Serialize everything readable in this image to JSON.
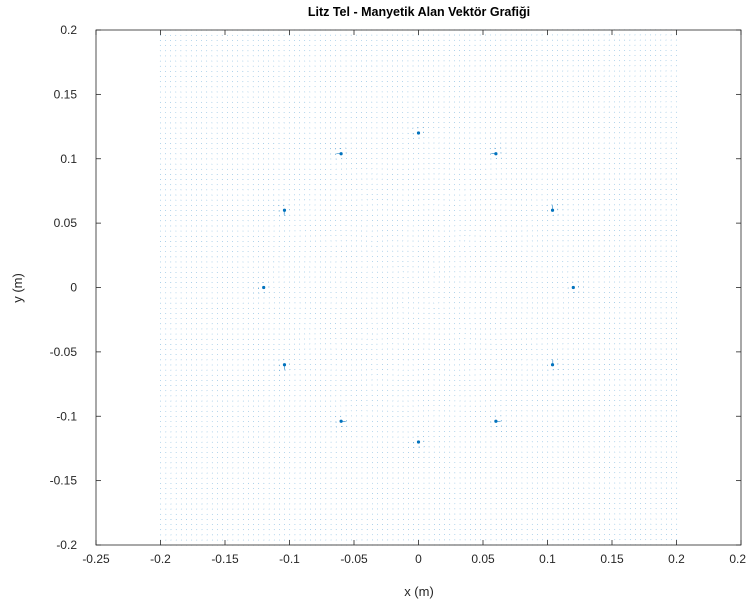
{
  "chart_data": {
    "type": "scatter",
    "title": "Litz Tel - Manyetik Alan Vektör Grafiği",
    "xlabel": "x (m)",
    "ylabel": "y (m)",
    "xlim": [
      -0.25,
      0.25
    ],
    "ylim": [
      -0.2,
      0.2
    ],
    "xticks": [
      -0.25,
      -0.2,
      -0.15,
      -0.1,
      -0.05,
      0,
      0.05,
      0.1,
      0.15,
      0.2,
      0.25
    ],
    "xtick_labels": [
      "-0.25",
      "-0.2",
      "-0.15",
      "-0.1",
      "-0.05",
      "0",
      "0.05",
      "0.1",
      "0.15",
      "0.2",
      "0.25"
    ],
    "yticks": [
      -0.2,
      -0.15,
      -0.1,
      -0.05,
      0,
      0.05,
      0.1,
      0.15,
      0.2
    ],
    "ytick_labels": [
      "-0.2",
      "-0.15",
      "-0.1",
      "-0.05",
      "0",
      "0.05",
      "0.1",
      "0.15",
      "0.2"
    ],
    "grid": false,
    "box": true,
    "field_region": {
      "x": [
        -0.2,
        0.2
      ],
      "y": [
        -0.2,
        0.2
      ]
    },
    "wire_ring_radius": 0.12,
    "wire_count": 12,
    "wire_positions": [
      [
        0.12,
        0.0
      ],
      [
        0.1039,
        0.06
      ],
      [
        0.06,
        0.1039
      ],
      [
        0.0,
        0.12
      ],
      [
        -0.06,
        0.1039
      ],
      [
        -0.1039,
        0.06
      ],
      [
        -0.12,
        0.0
      ],
      [
        -0.1039,
        -0.06
      ],
      [
        -0.06,
        -0.1039
      ],
      [
        0.0,
        -0.12
      ],
      [
        0.06,
        -0.1039
      ],
      [
        0.1039,
        -0.06
      ]
    ],
    "vector_color": "#0072BD"
  }
}
